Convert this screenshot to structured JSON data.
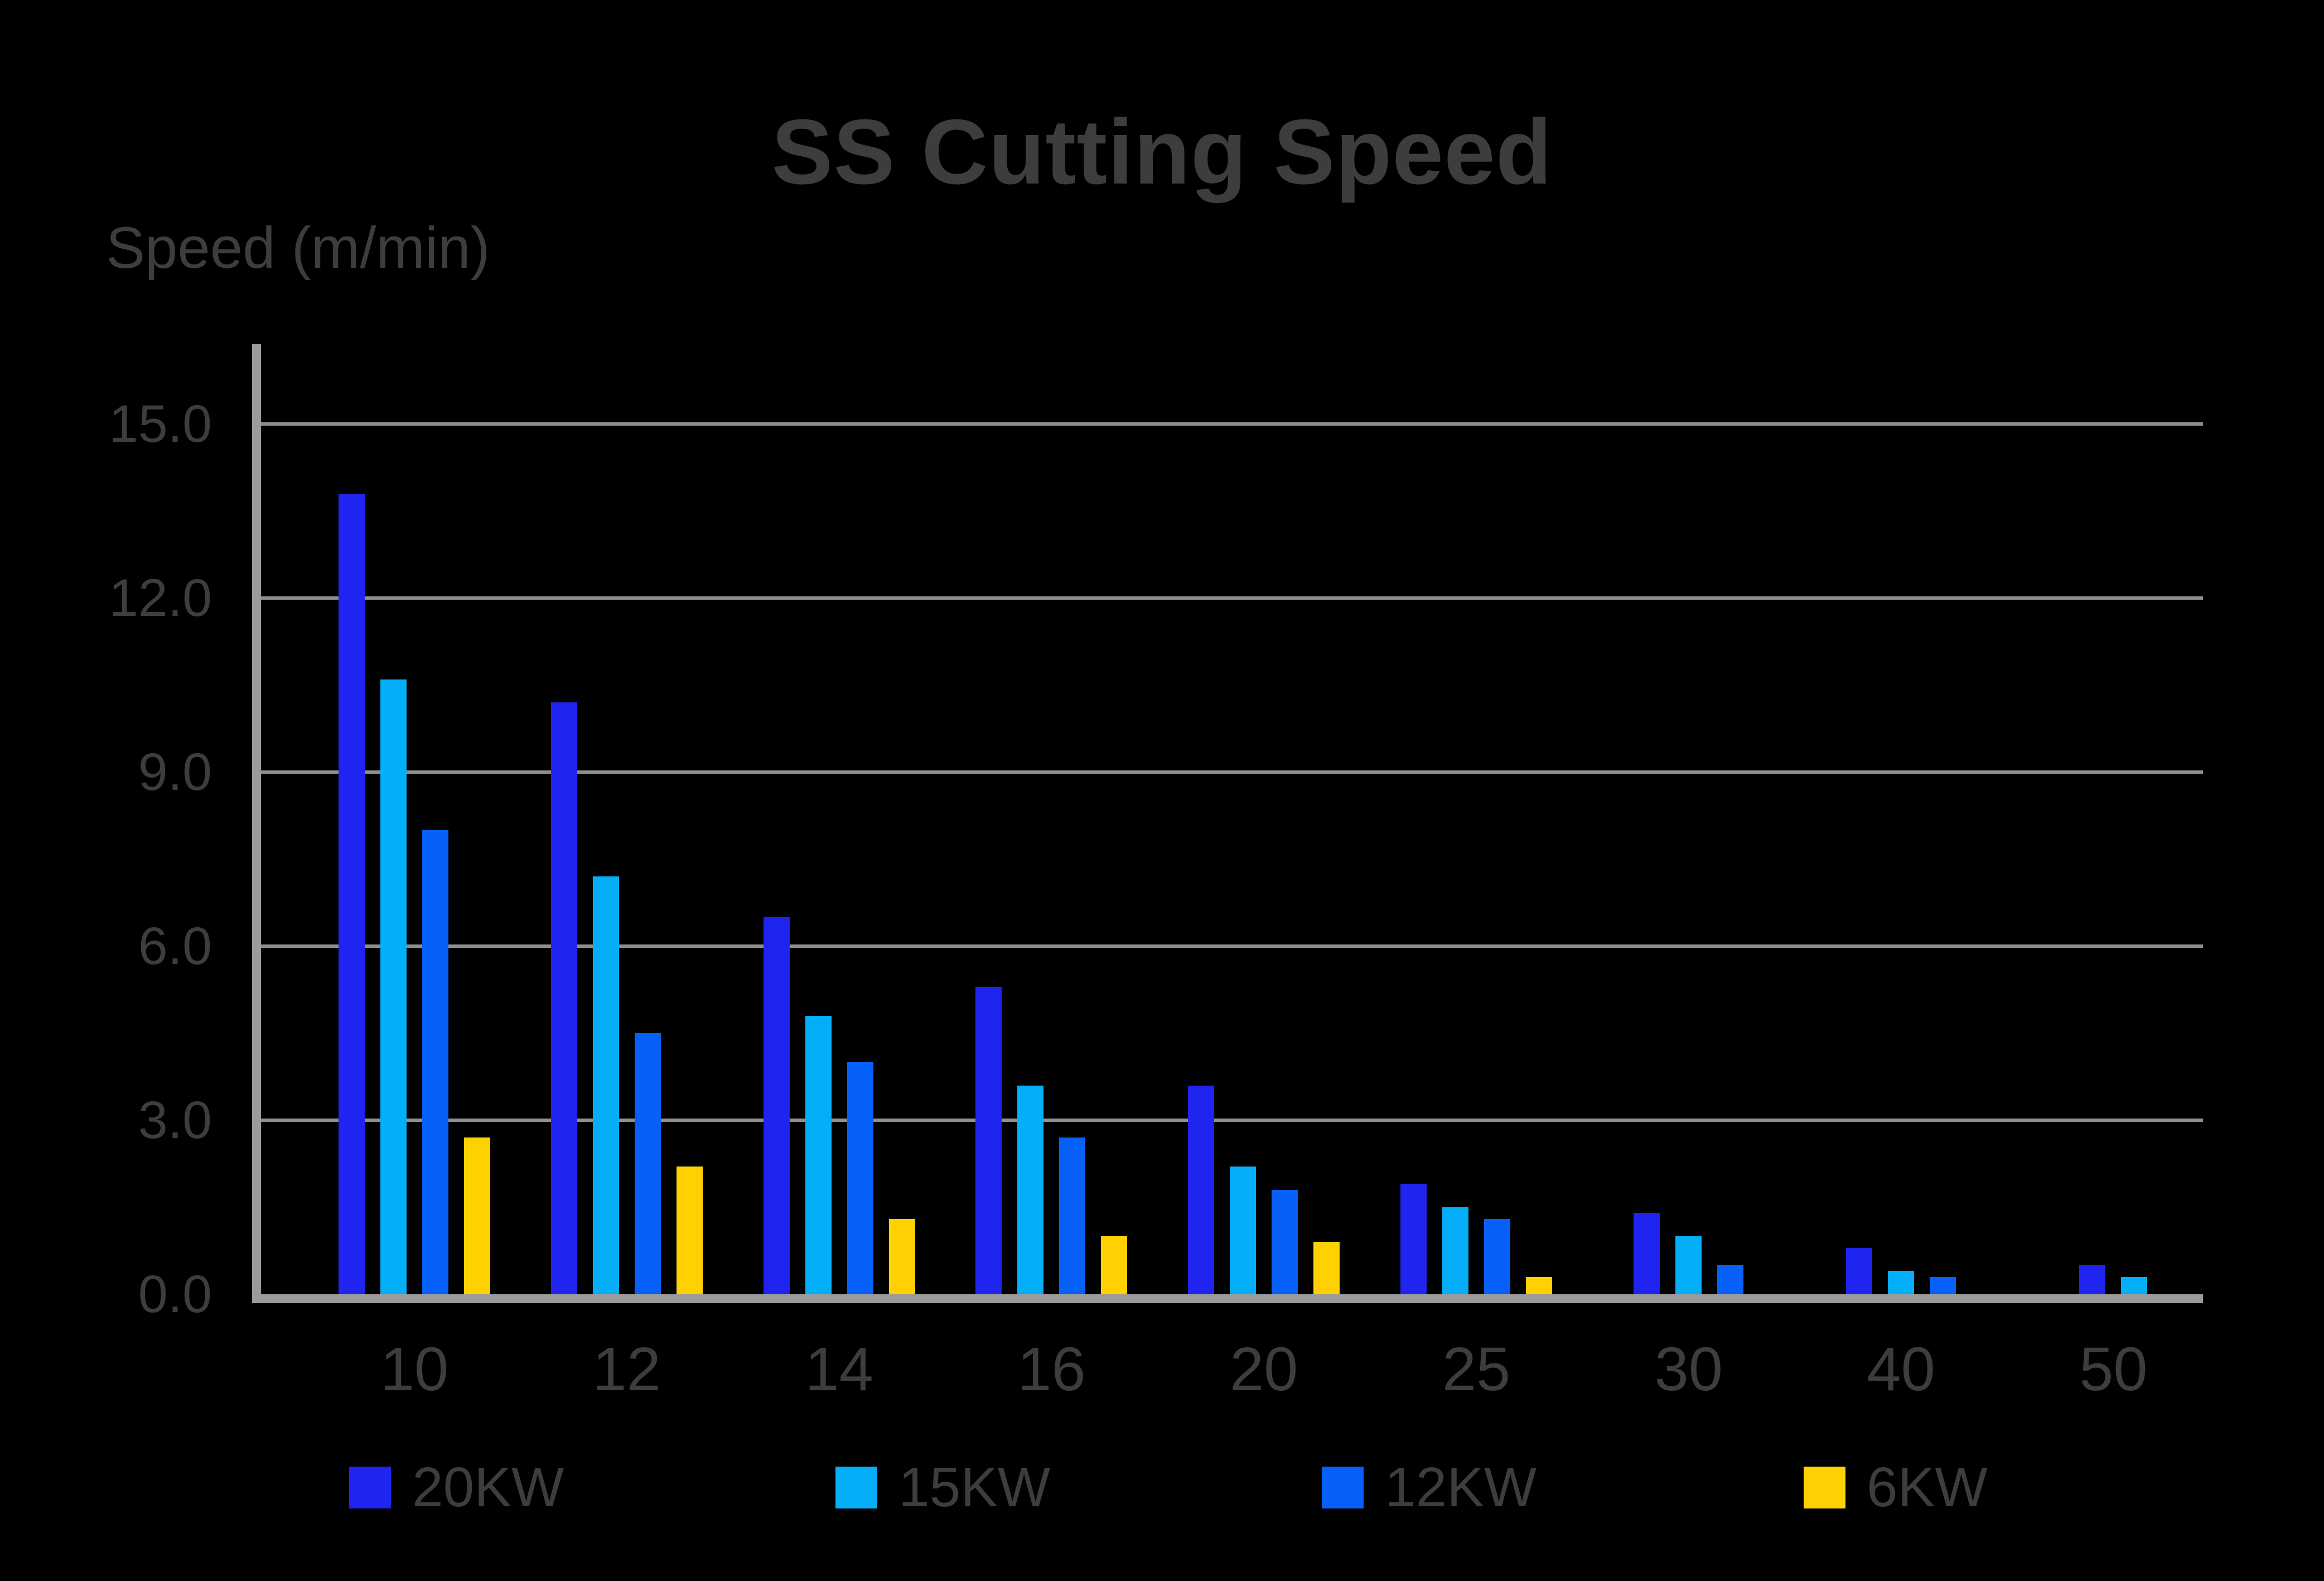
{
  "title": "SS Cutting Speed",
  "y_axis_title": "Speed (m/min)",
  "colors": {
    "background": "#000000",
    "axis": "#9b9b9b",
    "gridline": "#8f8f8f",
    "text": "#3d3d3d",
    "series_20kw": "#1f24ee",
    "series_15kw": "#05aef8",
    "series_12kw": "#0760f8",
    "series_6kw": "#ffd103"
  },
  "chart_data": {
    "type": "bar",
    "title": "SS Cutting Speed",
    "xlabel": "",
    "ylabel": "Speed (m/min)",
    "categories": [
      "10",
      "12",
      "14",
      "16",
      "20",
      "25",
      "30",
      "40",
      "50"
    ],
    "series": [
      {
        "name": "20KW",
        "color": "#1f24ee",
        "values": [
          13.8,
          10.2,
          6.5,
          5.3,
          3.6,
          1.9,
          1.4,
          0.8,
          0.5
        ]
      },
      {
        "name": "15KW",
        "color": "#05aef8",
        "values": [
          10.6,
          7.2,
          4.8,
          3.6,
          2.2,
          1.5,
          1.0,
          0.4,
          0.3
        ]
      },
      {
        "name": "12KW",
        "color": "#0760f8",
        "values": [
          8.0,
          4.5,
          4.0,
          2.7,
          1.8,
          1.3,
          0.5,
          0.3,
          0
        ]
      },
      {
        "name": "6KW",
        "color": "#ffd103",
        "values": [
          2.7,
          2.2,
          1.3,
          1.0,
          0.9,
          0.3,
          0,
          0,
          0
        ]
      }
    ],
    "ylim": [
      0,
      16.4
    ],
    "yticks": [
      "0.0",
      "3.0",
      "6.0",
      "9.0",
      "12.0",
      "15.0"
    ],
    "grid": "horizontal-only",
    "legend_position": "bottom"
  }
}
